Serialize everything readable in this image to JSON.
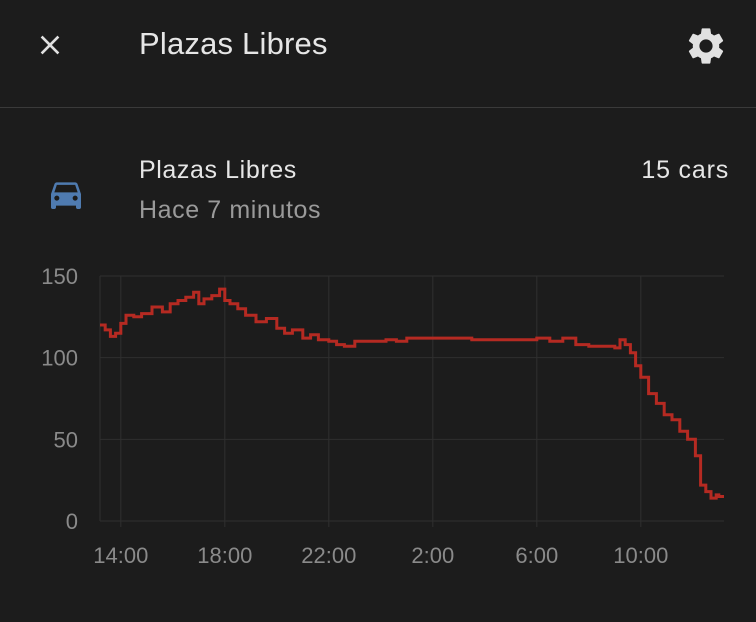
{
  "header": {
    "title": "Plazas Libres"
  },
  "entity": {
    "icon": "car-icon",
    "name": "Plazas Libres",
    "last_changed": "Hace 7 minutos",
    "state": "15 cars"
  },
  "colors": {
    "background": "#1c1c1c",
    "line": "#b52a22",
    "icon": "#4f7bb0"
  },
  "chart_data": {
    "type": "line",
    "step": true,
    "title": "",
    "xlabel": "",
    "ylabel": "",
    "ylim": [
      0,
      150
    ],
    "y_ticks": [
      0,
      50,
      100,
      150
    ],
    "x_ticks": [
      "14:00",
      "18:00",
      "22:00",
      "2:00",
      "6:00",
      "10:00"
    ],
    "x_tick_hours": [
      14,
      18,
      22,
      26,
      30,
      34
    ],
    "xlim_hours": [
      13.2,
      37.2
    ],
    "grid": true,
    "series": [
      {
        "color": "#b52a22",
        "x_hours": [
          13.2,
          13.4,
          13.6,
          13.8,
          14.0,
          14.2,
          14.5,
          14.8,
          15.2,
          15.6,
          15.9,
          16.2,
          16.5,
          16.8,
          17.0,
          17.2,
          17.5,
          17.8,
          18.0,
          18.2,
          18.5,
          18.8,
          19.2,
          19.6,
          20.0,
          20.3,
          20.6,
          21.0,
          21.3,
          21.6,
          22.0,
          22.3,
          22.6,
          23.0,
          23.4,
          23.8,
          24.2,
          24.6,
          25.0,
          25.5,
          26.0,
          26.5,
          27.0,
          27.5,
          28.0,
          28.5,
          29.0,
          29.5,
          30.0,
          30.5,
          31.0,
          31.5,
          32.0,
          32.5,
          33.0,
          33.2,
          33.4,
          33.6,
          33.8,
          34.0,
          34.3,
          34.6,
          34.9,
          35.2,
          35.5,
          35.8,
          36.1,
          36.3,
          36.5,
          36.7,
          36.9,
          37.0,
          37.2
        ],
        "values": [
          120,
          117,
          113,
          115,
          121,
          126,
          125,
          127,
          131,
          128,
          133,
          135,
          137,
          140,
          133,
          136,
          138,
          142,
          135,
          133,
          130,
          126,
          122,
          124,
          118,
          115,
          117,
          112,
          114,
          111,
          110,
          108,
          107,
          110,
          110,
          110,
          111,
          110,
          112,
          112,
          112,
          112,
          112,
          111,
          111,
          111,
          111,
          111,
          112,
          110,
          112,
          108,
          107,
          107,
          106,
          111,
          108,
          103,
          95,
          88,
          78,
          72,
          65,
          62,
          55,
          50,
          40,
          22,
          18,
          14,
          16,
          15,
          15
        ]
      }
    ]
  }
}
